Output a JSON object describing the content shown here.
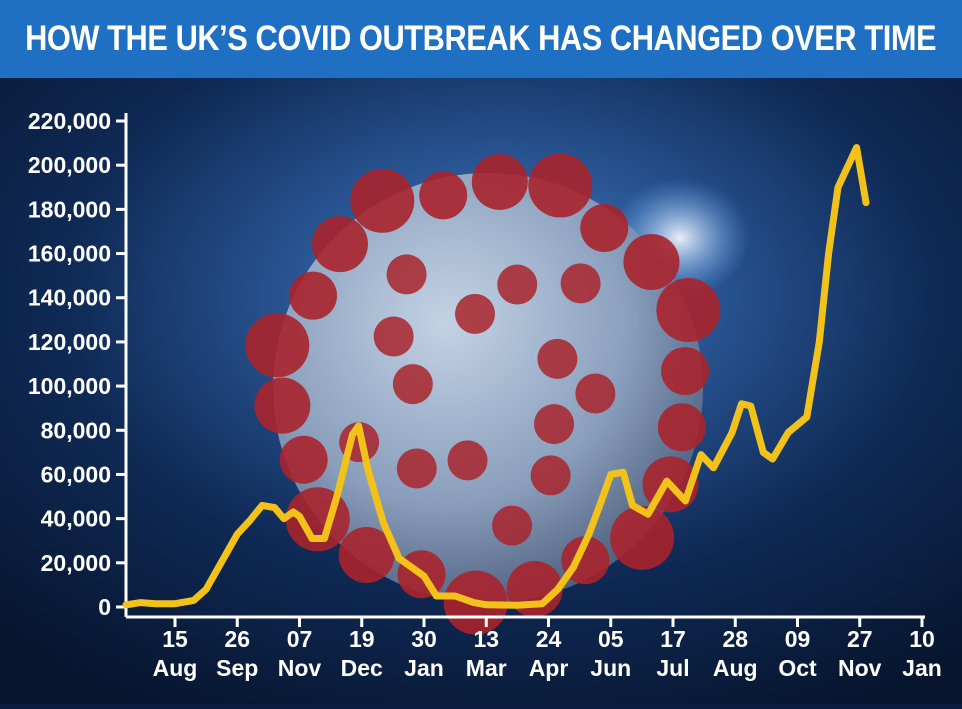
{
  "header": {
    "title": "HOW THE UK’S COVID OUTBREAK HAS CHANGED OVER TIME"
  },
  "colors": {
    "banner": "#1f6fc2",
    "line": "#f2c21b",
    "text": "#ffffff",
    "background": "#0b1d3e",
    "virus_body": "#8fa3bf",
    "virus_spikes": "#a8242c"
  },
  "background_image": "coronavirus-illustration",
  "chart_data": {
    "type": "line",
    "title": "HOW THE UK’S COVID OUTBREAK HAS CHANGED OVER TIME",
    "xlabel": "",
    "ylabel": "",
    "ylim": [
      0,
      220000
    ],
    "yticks": [
      "220,000",
      "200,000",
      "180,000",
      "160,000",
      "140,000",
      "120,000",
      "100,000",
      "80,000",
      "60,000",
      "40,000",
      "20,000",
      "0"
    ],
    "xticks": [
      {
        "day": "15",
        "month": "Aug"
      },
      {
        "day": "26",
        "month": "Sep"
      },
      {
        "day": "07",
        "month": "Nov"
      },
      {
        "day": "19",
        "month": "Dec"
      },
      {
        "day": "30",
        "month": "Jan"
      },
      {
        "day": "13",
        "month": "Mar"
      },
      {
        "day": "24",
        "month": "Apr"
      },
      {
        "day": "05",
        "month": "Jun"
      },
      {
        "day": "17",
        "month": "Jul"
      },
      {
        "day": "28",
        "month": "Aug"
      },
      {
        "day": "09",
        "month": "Oct"
      },
      {
        "day": "27",
        "month": "Nov"
      },
      {
        "day": "10",
        "month": "Jan"
      }
    ],
    "grid": false,
    "series": [
      {
        "values": [
          [
            0,
            1000
          ],
          [
            0.3,
            2000
          ],
          [
            0.6,
            1500
          ],
          [
            1,
            1500
          ],
          [
            1.3,
            3000
          ],
          [
            1.5,
            8000
          ],
          [
            1.7,
            18000
          ],
          [
            2,
            33000
          ],
          [
            2.2,
            39000
          ],
          [
            2.4,
            46000
          ],
          [
            2.6,
            45000
          ],
          [
            2.75,
            40000
          ],
          [
            2.9,
            43000
          ],
          [
            3,
            41000
          ],
          [
            3.2,
            31000
          ],
          [
            3.4,
            31000
          ],
          [
            3.6,
            50000
          ],
          [
            3.85,
            78000
          ],
          [
            3.95,
            82000
          ],
          [
            4.1,
            62000
          ],
          [
            4.35,
            38000
          ],
          [
            4.6,
            22000
          ],
          [
            5,
            14000
          ],
          [
            5.2,
            5000
          ],
          [
            5.5,
            5000
          ],
          [
            5.8,
            2000
          ],
          [
            6,
            1000
          ],
          [
            6.5,
            800
          ],
          [
            6.9,
            1500
          ],
          [
            7.15,
            8000
          ],
          [
            7.4,
            18000
          ],
          [
            7.65,
            33000
          ],
          [
            7.85,
            48000
          ],
          [
            8,
            60000
          ],
          [
            8.2,
            61000
          ],
          [
            8.35,
            46000
          ],
          [
            8.6,
            42000
          ],
          [
            8.9,
            57000
          ],
          [
            9.2,
            48000
          ],
          [
            9.45,
            69000
          ],
          [
            9.65,
            63000
          ],
          [
            9.95,
            79000
          ],
          [
            10.1,
            92000
          ],
          [
            10.25,
            91000
          ],
          [
            10.45,
            70000
          ],
          [
            10.6,
            67000
          ],
          [
            10.85,
            79000
          ],
          [
            11.15,
            86000
          ],
          [
            11.35,
            120000
          ],
          [
            11.5,
            160000
          ],
          [
            11.65,
            190000
          ],
          [
            11.95,
            208000
          ],
          [
            12.1,
            183000
          ]
        ]
      }
    ]
  }
}
